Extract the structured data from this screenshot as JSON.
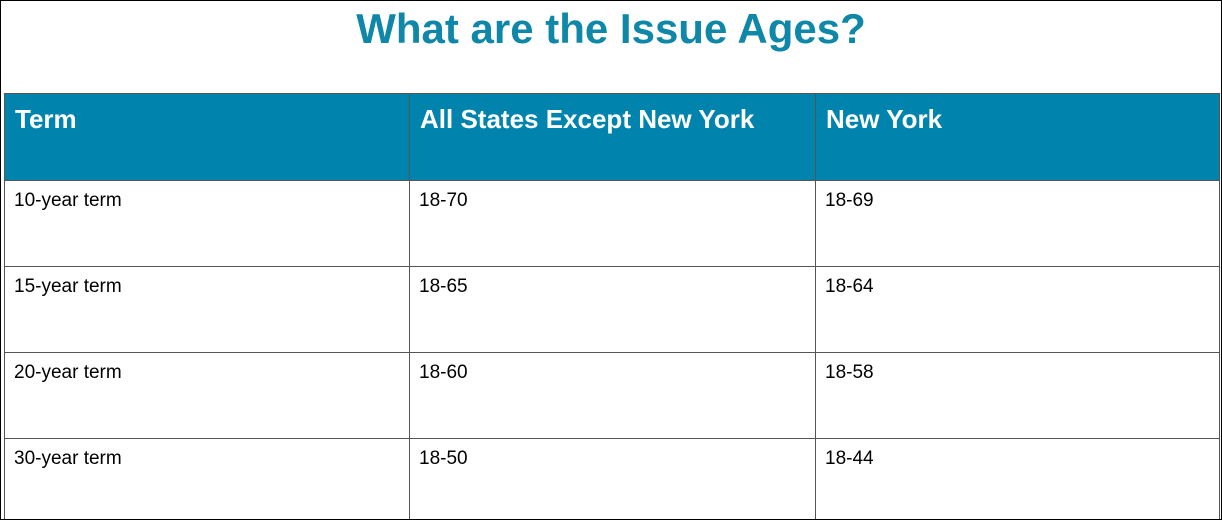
{
  "header": {
    "title": "What are the Issue Ages?"
  },
  "table": {
    "columns": [
      "Term",
      "All States Except New York",
      "New York"
    ],
    "rows": [
      [
        "10-year term",
        "18-70",
        "18-69"
      ],
      [
        "15-year term",
        "18-65",
        "18-64"
      ],
      [
        "20-year term",
        "18-60",
        "18-58"
      ],
      [
        "30-year term",
        "18-50",
        "18-44"
      ]
    ]
  }
}
